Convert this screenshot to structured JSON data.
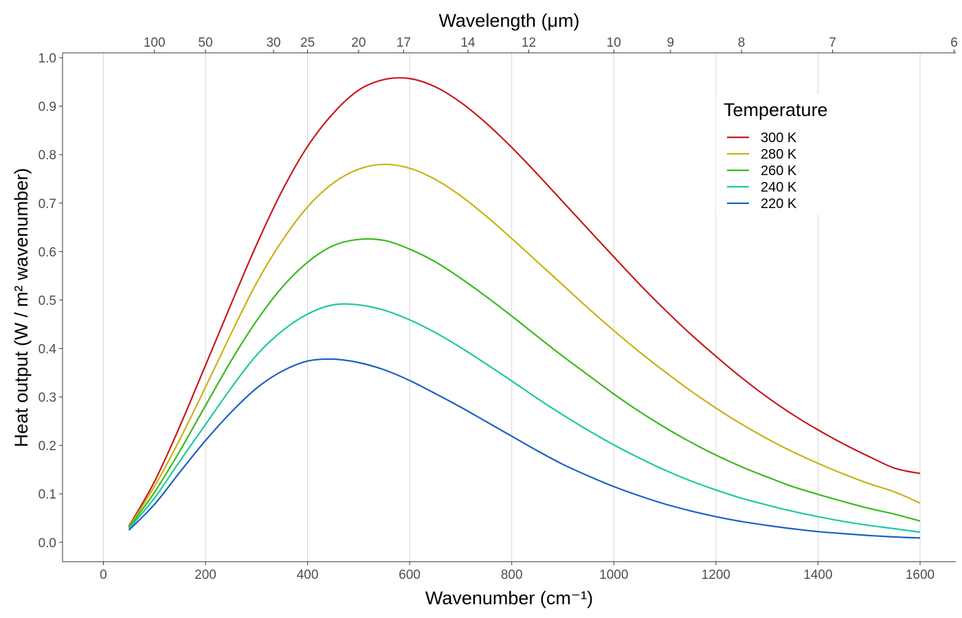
{
  "chart_data": {
    "type": "line",
    "xlabel": "Wavenumber (cm⁻¹)",
    "ylabel": "Heat output (W / m² wavenumber)",
    "top_xlabel": "Wavelength (μm)",
    "xlim": [
      -80,
      1670
    ],
    "ylim": [
      -0.04,
      1.01
    ],
    "x_ticks": [
      0,
      200,
      400,
      600,
      800,
      1000,
      1200,
      1400,
      1600
    ],
    "x_tick_labels": [
      "0",
      "200",
      "400",
      "600",
      "800",
      "1000",
      "1200",
      "1400",
      "1600"
    ],
    "y_ticks": [
      0.0,
      0.1,
      0.2,
      0.3,
      0.4,
      0.5,
      0.6,
      0.7,
      0.8,
      0.9,
      1.0
    ],
    "y_tick_labels": [
      "0.0",
      "0.1",
      "0.2",
      "0.3",
      "0.4",
      "0.5",
      "0.6",
      "0.7",
      "0.8",
      "0.9",
      "1.0"
    ],
    "top_ticks_um": [
      100,
      50,
      30,
      25,
      20,
      17,
      14,
      12,
      10,
      9,
      8,
      7,
      6
    ],
    "top_tick_labels": [
      "100",
      "50",
      "30",
      "25",
      "20",
      "17",
      "14",
      "12",
      "10",
      "9",
      "8",
      "7",
      "6"
    ],
    "grid": "vertical major lines only",
    "legend": {
      "title": "Temperature",
      "position": "top-right (inside plot)"
    },
    "x": [
      50,
      100,
      150,
      200,
      250,
      300,
      350,
      400,
      450,
      500,
      550,
      600,
      650,
      700,
      750,
      800,
      850,
      900,
      950,
      1000,
      1050,
      1100,
      1150,
      1200,
      1250,
      1300,
      1350,
      1400,
      1450,
      1500,
      1550,
      1600
    ],
    "series": [
      {
        "name": "300 K",
        "color": "#c8171c",
        "values": [
          0.033,
          0.125,
          0.24,
          0.365,
          0.491,
          0.614,
          0.725,
          0.817,
          0.885,
          0.933,
          0.955,
          0.957,
          0.94,
          0.908,
          0.865,
          0.815,
          0.76,
          0.703,
          0.646,
          0.589,
          0.533,
          0.48,
          0.43,
          0.384,
          0.34,
          0.3,
          0.264,
          0.232,
          0.203,
          0.177,
          0.153,
          0.142
        ]
      },
      {
        "name": "280 K",
        "color": "#c9b112",
        "values": [
          0.031,
          0.115,
          0.213,
          0.32,
          0.43,
          0.535,
          0.622,
          0.692,
          0.741,
          0.77,
          0.78,
          0.772,
          0.749,
          0.715,
          0.673,
          0.627,
          0.579,
          0.531,
          0.483,
          0.437,
          0.393,
          0.352,
          0.313,
          0.277,
          0.244,
          0.214,
          0.187,
          0.163,
          0.141,
          0.121,
          0.104,
          0.081
        ]
      },
      {
        "name": "260 K",
        "color": "#39b91e",
        "values": [
          0.03,
          0.103,
          0.189,
          0.282,
          0.374,
          0.457,
          0.526,
          0.578,
          0.612,
          0.625,
          0.623,
          0.605,
          0.579,
          0.545,
          0.507,
          0.467,
          0.425,
          0.384,
          0.345,
          0.306,
          0.27,
          0.237,
          0.207,
          0.18,
          0.156,
          0.135,
          0.115,
          0.099,
          0.084,
          0.07,
          0.058,
          0.044
        ]
      },
      {
        "name": "240 K",
        "color": "#1cc8a3",
        "values": [
          0.028,
          0.091,
          0.168,
          0.243,
          0.318,
          0.386,
          0.436,
          0.471,
          0.49,
          0.49,
          0.479,
          0.459,
          0.433,
          0.402,
          0.368,
          0.333,
          0.297,
          0.263,
          0.231,
          0.201,
          0.174,
          0.149,
          0.127,
          0.108,
          0.091,
          0.077,
          0.064,
          0.053,
          0.043,
          0.035,
          0.028,
          0.021
        ]
      },
      {
        "name": "220 K",
        "color": "#1b5ec4",
        "values": [
          0.025,
          0.078,
          0.145,
          0.21,
          0.268,
          0.318,
          0.353,
          0.374,
          0.378,
          0.371,
          0.356,
          0.334,
          0.307,
          0.279,
          0.249,
          0.219,
          0.189,
          0.161,
          0.137,
          0.115,
          0.096,
          0.079,
          0.065,
          0.053,
          0.043,
          0.035,
          0.028,
          0.022,
          0.018,
          0.014,
          0.011,
          0.009
        ]
      }
    ]
  }
}
